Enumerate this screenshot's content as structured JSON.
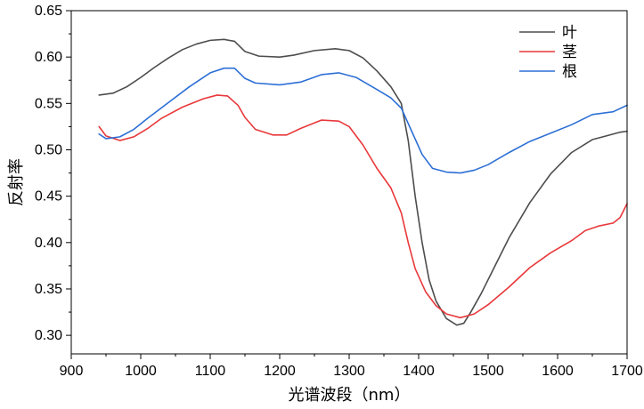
{
  "chart_data": {
    "type": "line",
    "title": "",
    "xlabel": "光谱波段（nm）",
    "ylabel": "反射率",
    "xlim": [
      900,
      1700
    ],
    "ylim": [
      0.28,
      0.65
    ],
    "xticks": [
      "900",
      "1000",
      "1100",
      "1200",
      "1300",
      "1400",
      "1500",
      "1600",
      "1700"
    ],
    "yticks": [
      "0.30",
      "0.35",
      "0.40",
      "0.45",
      "0.50",
      "0.55",
      "0.60",
      "0.65"
    ],
    "grid": false,
    "legend_position": "top-right",
    "series": [
      {
        "name": "叶",
        "color": "#4d4d4d",
        "points": [
          [
            940,
            0.559
          ],
          [
            960,
            0.561
          ],
          [
            980,
            0.568
          ],
          [
            1000,
            0.578
          ],
          [
            1020,
            0.589
          ],
          [
            1040,
            0.599
          ],
          [
            1060,
            0.608
          ],
          [
            1080,
            0.614
          ],
          [
            1100,
            0.618
          ],
          [
            1120,
            0.619
          ],
          [
            1135,
            0.617
          ],
          [
            1150,
            0.606
          ],
          [
            1170,
            0.601
          ],
          [
            1200,
            0.6
          ],
          [
            1220,
            0.602
          ],
          [
            1250,
            0.607
          ],
          [
            1280,
            0.609
          ],
          [
            1300,
            0.607
          ],
          [
            1320,
            0.599
          ],
          [
            1340,
            0.585
          ],
          [
            1360,
            0.568
          ],
          [
            1375,
            0.55
          ],
          [
            1385,
            0.51
          ],
          [
            1395,
            0.45
          ],
          [
            1405,
            0.4
          ],
          [
            1415,
            0.36
          ],
          [
            1425,
            0.337
          ],
          [
            1440,
            0.318
          ],
          [
            1455,
            0.311
          ],
          [
            1465,
            0.313
          ],
          [
            1475,
            0.325
          ],
          [
            1490,
            0.345
          ],
          [
            1510,
            0.375
          ],
          [
            1530,
            0.405
          ],
          [
            1560,
            0.443
          ],
          [
            1590,
            0.474
          ],
          [
            1620,
            0.497
          ],
          [
            1650,
            0.511
          ],
          [
            1670,
            0.515
          ],
          [
            1690,
            0.519
          ],
          [
            1700,
            0.52
          ]
        ]
      },
      {
        "name": "茎",
        "color": "#e8383a",
        "points": [
          [
            940,
            0.525
          ],
          [
            950,
            0.515
          ],
          [
            970,
            0.51
          ],
          [
            990,
            0.514
          ],
          [
            1010,
            0.523
          ],
          [
            1030,
            0.534
          ],
          [
            1060,
            0.546
          ],
          [
            1090,
            0.555
          ],
          [
            1110,
            0.559
          ],
          [
            1125,
            0.558
          ],
          [
            1140,
            0.548
          ],
          [
            1150,
            0.535
          ],
          [
            1165,
            0.522
          ],
          [
            1190,
            0.516
          ],
          [
            1210,
            0.516
          ],
          [
            1230,
            0.523
          ],
          [
            1260,
            0.532
          ],
          [
            1285,
            0.531
          ],
          [
            1300,
            0.525
          ],
          [
            1320,
            0.505
          ],
          [
            1340,
            0.48
          ],
          [
            1360,
            0.459
          ],
          [
            1375,
            0.432
          ],
          [
            1385,
            0.4
          ],
          [
            1395,
            0.372
          ],
          [
            1410,
            0.347
          ],
          [
            1425,
            0.332
          ],
          [
            1440,
            0.323
          ],
          [
            1460,
            0.319
          ],
          [
            1480,
            0.323
          ],
          [
            1500,
            0.333
          ],
          [
            1530,
            0.352
          ],
          [
            1560,
            0.373
          ],
          [
            1590,
            0.389
          ],
          [
            1620,
            0.402
          ],
          [
            1640,
            0.413
          ],
          [
            1660,
            0.418
          ],
          [
            1680,
            0.421
          ],
          [
            1690,
            0.427
          ],
          [
            1700,
            0.442
          ]
        ]
      },
      {
        "name": "根",
        "color": "#2d6fd6",
        "points": [
          [
            940,
            0.517
          ],
          [
            950,
            0.512
          ],
          [
            970,
            0.514
          ],
          [
            990,
            0.522
          ],
          [
            1010,
            0.534
          ],
          [
            1040,
            0.551
          ],
          [
            1070,
            0.568
          ],
          [
            1100,
            0.583
          ],
          [
            1120,
            0.588
          ],
          [
            1135,
            0.588
          ],
          [
            1150,
            0.577
          ],
          [
            1165,
            0.572
          ],
          [
            1200,
            0.57
          ],
          [
            1230,
            0.573
          ],
          [
            1260,
            0.581
          ],
          [
            1285,
            0.583
          ],
          [
            1310,
            0.578
          ],
          [
            1340,
            0.565
          ],
          [
            1360,
            0.556
          ],
          [
            1375,
            0.545
          ],
          [
            1390,
            0.52
          ],
          [
            1405,
            0.495
          ],
          [
            1420,
            0.48
          ],
          [
            1440,
            0.476
          ],
          [
            1460,
            0.475
          ],
          [
            1480,
            0.478
          ],
          [
            1500,
            0.484
          ],
          [
            1530,
            0.497
          ],
          [
            1560,
            0.509
          ],
          [
            1590,
            0.518
          ],
          [
            1620,
            0.527
          ],
          [
            1650,
            0.538
          ],
          [
            1680,
            0.541
          ],
          [
            1700,
            0.548
          ]
        ]
      }
    ]
  }
}
